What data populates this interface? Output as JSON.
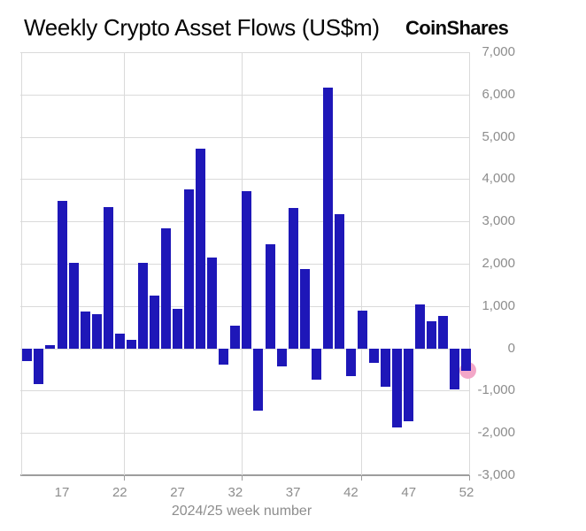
{
  "header": {
    "title": "Weekly Crypto Asset Flows (US$m)",
    "logo_text": "CoinShares"
  },
  "chart_data": {
    "type": "bar",
    "title": "Weekly Crypto Asset Flows (US$m)",
    "xlabel": "2024/25 week number",
    "ylabel": "",
    "ylim": [
      -3000,
      7000
    ],
    "grid": true,
    "legend": "none",
    "y_ticks": [
      7000,
      6000,
      5000,
      4000,
      3000,
      2000,
      1000,
      0,
      -1000,
      -2000,
      -3000
    ],
    "y_tick_labels": [
      "7,000",
      "6,000",
      "5,000",
      "4,000",
      "3,000",
      "2,000",
      "1,000",
      "0",
      "-1,000",
      "-2,000",
      "-3,000"
    ],
    "x_ticks": [
      17,
      22,
      27,
      32,
      37,
      42,
      47,
      52
    ],
    "x_tick_labels": [
      "17",
      "22",
      "27",
      "32",
      "37",
      "42",
      "47",
      "52"
    ],
    "categories": [
      14,
      15,
      16,
      17,
      18,
      19,
      20,
      21,
      22,
      23,
      24,
      25,
      26,
      27,
      28,
      29,
      30,
      31,
      32,
      33,
      34,
      35,
      36,
      37,
      38,
      39,
      40,
      41,
      42,
      43,
      44,
      45,
      46,
      47,
      48,
      49,
      50,
      51,
      52
    ],
    "values": [
      -310,
      -840,
      80,
      3480,
      2030,
      880,
      810,
      3330,
      350,
      210,
      2020,
      1240,
      2840,
      940,
      3760,
      4710,
      2150,
      -380,
      530,
      3710,
      -1480,
      2470,
      -420,
      3310,
      1870,
      -750,
      6160,
      3170,
      -650,
      900,
      -350,
      -910,
      -1860,
      -1730,
      1030,
      630,
      770,
      -980,
      -540
    ],
    "bar_color": "#1e17b8",
    "gridline_color": "#dadada",
    "axis_line_color": "#9d9d9d",
    "tick_label_color": "#8d8d8d",
    "title_color": "#060606",
    "highlight": {
      "week": 52,
      "shape": "circle",
      "color": "#f3a7c8",
      "position": "end-of-last-bar"
    }
  }
}
